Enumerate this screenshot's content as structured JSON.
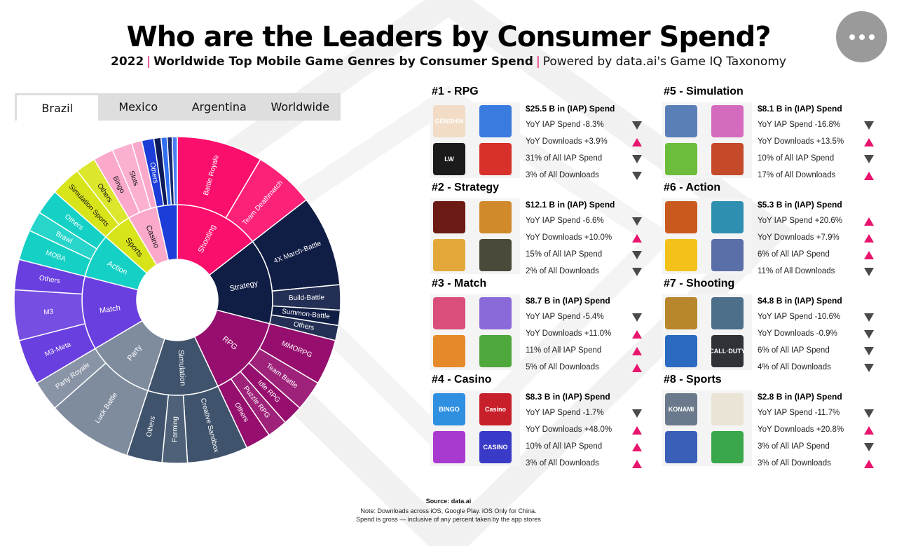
{
  "header": {
    "title": "Who are the Leaders by Consumer Spend?",
    "subtitle_year": "2022",
    "subtitle_main": "Worldwide Top Mobile Game Genres by Consumer Spend",
    "subtitle_powered": "Powered by data.ai's Game IQ Taxonomy",
    "separator": "|"
  },
  "tabs": [
    {
      "label": "Brazil",
      "active": true
    },
    {
      "label": "Mexico",
      "active": false
    },
    {
      "label": "Argentina",
      "active": false
    },
    {
      "label": "Worldwide",
      "active": false
    }
  ],
  "colors": {
    "up": "#e8146e",
    "down": "#4a4a4a",
    "Shooting": "#fb0f6c",
    "Strategy": "#101d45",
    "RPG": "#960f6e",
    "Simulation": "#3f536c",
    "Party": "#7f8c9e",
    "Match": "#6a3fe0",
    "Action": "#15d1c5",
    "Sports": "#d8e41a",
    "Casino": "#fba9cb",
    "Others": "#1c3dd8"
  },
  "chart_data": {
    "type": "sunburst",
    "country": "Brazil",
    "inner": [
      {
        "name": "Shooting",
        "value": 14.5,
        "color": "#fb0f6c",
        "children": [
          {
            "name": "Battle Royale",
            "value": 8.5
          },
          {
            "name": "Team Deathmatch",
            "value": 6.0
          }
        ]
      },
      {
        "name": "Strategy",
        "value": 14.5,
        "color": "#101d45",
        "children": [
          {
            "name": "4X March-Battle",
            "value": 9.0
          },
          {
            "name": "Build-Battle",
            "value": 2.5
          },
          {
            "name": "Summon-Battle",
            "value": 1.5
          },
          {
            "name": "Others",
            "value": 1.5
          }
        ]
      },
      {
        "name": "RPG",
        "value": 14.0,
        "color": "#960f6e",
        "children": [
          {
            "name": "MMORPG",
            "value": 4.5
          },
          {
            "name": "Team Battle",
            "value": 3.0
          },
          {
            "name": "Idle RPG",
            "value": 2.0
          },
          {
            "name": "Puzzle RPG",
            "value": 2.0
          },
          {
            "name": "Others",
            "value": 2.5
          }
        ]
      },
      {
        "name": "Simulation",
        "value": 12.0,
        "color": "#3f536c",
        "children": [
          {
            "name": "Creative Sandbox",
            "value": 6.0
          },
          {
            "name": "Farming",
            "value": 2.5
          },
          {
            "name": "Others",
            "value": 3.5
          }
        ]
      },
      {
        "name": "Party",
        "value": 11.5,
        "color": "#7f8c9e",
        "children": [
          {
            "name": "Luck Battle",
            "value": 8.5
          },
          {
            "name": "Party Royale",
            "value": 3.0
          }
        ]
      },
      {
        "name": "Match",
        "value": 12.5,
        "color": "#6a3fe0",
        "children": [
          {
            "name": "M3-Meta",
            "value": 4.5
          },
          {
            "name": "M3",
            "value": 5.0
          },
          {
            "name": "Others",
            "value": 3.0
          }
        ]
      },
      {
        "name": "Action",
        "value": 7.5,
        "color": "#15d1c5",
        "children": [
          {
            "name": "MOBA",
            "value": 3.0
          },
          {
            "name": "Brawl",
            "value": 2.0
          },
          {
            "name": "Others",
            "value": 2.5
          }
        ]
      },
      {
        "name": "Sports",
        "value": 5.0,
        "color": "#d8e41a",
        "children": [
          {
            "name": "Simulation Sports",
            "value": 3.0
          },
          {
            "name": "Others",
            "value": 2.0
          }
        ]
      },
      {
        "name": "Casino",
        "value": 5.0,
        "color": "#fba9cb",
        "children": [
          {
            "name": "Bingo",
            "value": 2.0
          },
          {
            "name": "Slots",
            "value": 2.0
          },
          {
            "name": "",
            "value": 1.0
          }
        ]
      },
      {
        "name": "",
        "value": 3.5,
        "color": "#1c3dd8",
        "children": [
          {
            "name": "Others",
            "value": 1.2
          },
          {
            "name": "",
            "value": 0.7
          },
          {
            "name": "",
            "value": 0.6
          },
          {
            "name": "",
            "value": 0.5
          },
          {
            "name": "",
            "value": 0.5
          }
        ]
      }
    ]
  },
  "genres": [
    {
      "title": "#1 - RPG",
      "spend": "$25.5 B in (IAP) Spend",
      "stats": [
        {
          "text": "YoY IAP Spend -8.3%",
          "dir": "down"
        },
        {
          "text": "YoY Downloads +3.9%",
          "dir": "up"
        },
        {
          "text": "31% of All IAP Spend",
          "dir": "down"
        },
        {
          "text": "3% of All Downloads",
          "dir": "down"
        }
      ],
      "icons": [
        {
          "color": "#f2dcc6",
          "text": "GENSHIN"
        },
        {
          "color": "#3a7be0",
          "text": ""
        },
        {
          "color": "#1b1b1b",
          "text": "LW"
        },
        {
          "color": "#d8302a",
          "text": ""
        }
      ]
    },
    {
      "title": "#5 - Simulation",
      "spend": "$8.1 B in (IAP) Spend",
      "stats": [
        {
          "text": "YoY IAP Spend -16.8%",
          "dir": "down"
        },
        {
          "text": "YoY Downloads +13.5%",
          "dir": "up"
        },
        {
          "text": "10% of All IAP Spend",
          "dir": "down"
        },
        {
          "text": "17% of All Downloads",
          "dir": "up"
        }
      ],
      "icons": [
        {
          "color": "#5a7fb8",
          "text": ""
        },
        {
          "color": "#d56bbf",
          "text": ""
        },
        {
          "color": "#6cbd3b",
          "text": ""
        },
        {
          "color": "#c44a2a",
          "text": ""
        }
      ]
    },
    {
      "title": "#2 - Strategy",
      "spend": "$12.1 B in (IAP) Spend",
      "stats": [
        {
          "text": "YoY IAP Spend -6.6%",
          "dir": "down"
        },
        {
          "text": "YoY Downloads +10.0%",
          "dir": "up"
        },
        {
          "text": "15% of All IAP Spend",
          "dir": "down"
        },
        {
          "text": "2% of All Downloads",
          "dir": "down"
        }
      ],
      "icons": [
        {
          "color": "#6b1a14",
          "text": ""
        },
        {
          "color": "#d08a2c",
          "text": ""
        },
        {
          "color": "#e2a93a",
          "text": ""
        },
        {
          "color": "#4b4a3a",
          "text": ""
        }
      ]
    },
    {
      "title": "#6 - Action",
      "spend": "$5.3 B in (IAP) Spend",
      "stats": [
        {
          "text": "YoY IAP Spend +20.6%",
          "dir": "up"
        },
        {
          "text": "YoY Downloads +7.9%",
          "dir": "up"
        },
        {
          "text": "6% of All IAP Spend",
          "dir": "up"
        },
        {
          "text": "11% of All Downloads",
          "dir": "down"
        }
      ],
      "icons": [
        {
          "color": "#c85a1e",
          "text": ""
        },
        {
          "color": "#2f8fb0",
          "text": ""
        },
        {
          "color": "#f2c21b",
          "text": ""
        },
        {
          "color": "#5a6fa8",
          "text": ""
        }
      ]
    },
    {
      "title": "#3 - Match",
      "spend": "$8.7 B in (IAP) Spend",
      "stats": [
        {
          "text": "YoY IAP Spend -5.4%",
          "dir": "down"
        },
        {
          "text": "YoY Downloads +11.0%",
          "dir": "up"
        },
        {
          "text": "11% of All IAP Spend",
          "dir": "up"
        },
        {
          "text": "5% of All Downloads",
          "dir": "up"
        }
      ],
      "icons": [
        {
          "color": "#d94e7a",
          "text": ""
        },
        {
          "color": "#8a6ad8",
          "text": ""
        },
        {
          "color": "#e58a2a",
          "text": ""
        },
        {
          "color": "#4fa83c",
          "text": ""
        }
      ]
    },
    {
      "title": "#7 - Shooting",
      "spend": "$4.8 B in (IAP) Spend",
      "stats": [
        {
          "text": "YoY IAP Spend -10.6%",
          "dir": "down"
        },
        {
          "text": "YoY Downloads -0.9%",
          "dir": "down"
        },
        {
          "text": "6% of All IAP Spend",
          "dir": "down"
        },
        {
          "text": "4% of All Downloads",
          "dir": "down"
        }
      ],
      "icons": [
        {
          "color": "#b8862c",
          "text": ""
        },
        {
          "color": "#4d6f8a",
          "text": ""
        },
        {
          "color": "#2a6ac0",
          "text": ""
        },
        {
          "color": "#2f3236",
          "text": "CALL·DUTY"
        }
      ]
    },
    {
      "title": "#4 - Casino",
      "spend": "$8.3 B in (IAP) Spend",
      "stats": [
        {
          "text": "YoY IAP Spend -1.7%",
          "dir": "down"
        },
        {
          "text": "YoY Downloads +48.0%",
          "dir": "up"
        },
        {
          "text": "10% of All IAP Spend",
          "dir": "up"
        },
        {
          "text": "3% of All Downloads",
          "dir": "up"
        }
      ],
      "icons": [
        {
          "color": "#2f8fe0",
          "text": "BINGO"
        },
        {
          "color": "#c8202a",
          "text": "Casino"
        },
        {
          "color": "#a83ad0",
          "text": ""
        },
        {
          "color": "#3a3ac8",
          "text": "CASINO"
        }
      ]
    },
    {
      "title": "#8 - Sports",
      "spend": "$2.8 B in (IAP) Spend",
      "stats": [
        {
          "text": "YoY IAP Spend -11.7%",
          "dir": "down"
        },
        {
          "text": "YoY Downloads +20.8%",
          "dir": "up"
        },
        {
          "text": "3% of All IAP Spend",
          "dir": "down"
        },
        {
          "text": "3% of All Downloads",
          "dir": "up"
        }
      ],
      "icons": [
        {
          "color": "#6a7a8c",
          "text": "KONAMI"
        },
        {
          "color": "#e9e4d6",
          "text": ""
        },
        {
          "color": "#3a5fb8",
          "text": ""
        },
        {
          "color": "#3aa84a",
          "text": ""
        }
      ]
    }
  ],
  "footer": {
    "source": "Source: data.ai",
    "note1": "Note: Downloads across iOS, Google Play. iOS Only for China.",
    "note2": "Spend is gross — inclusive of any percent taken by the app stores"
  }
}
